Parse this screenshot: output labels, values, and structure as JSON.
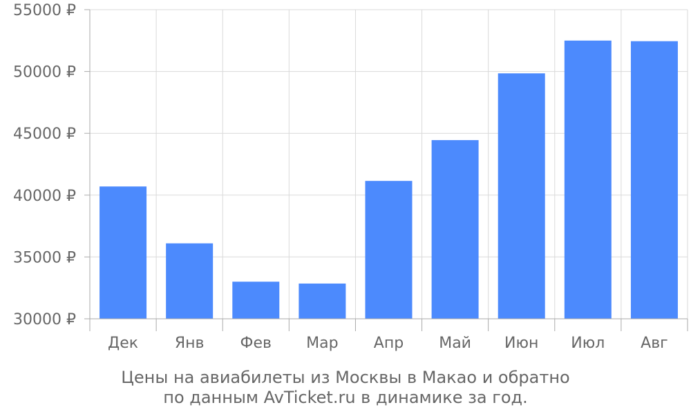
{
  "chart_data": {
    "type": "bar",
    "categories": [
      "Дек",
      "Янв",
      "Фев",
      "Мар",
      "Апр",
      "Май",
      "Июн",
      "Июл",
      "Авг"
    ],
    "values": [
      40700,
      36100,
      33000,
      32850,
      41150,
      44450,
      49850,
      52500,
      52450
    ],
    "y_ticks": [
      "30000 ₽",
      "35000 ₽",
      "40000 ₽",
      "45000 ₽",
      "50000 ₽",
      "55000 ₽"
    ],
    "ylim": [
      30000,
      55000
    ],
    "grid": true,
    "bar_color": "#4c8afd",
    "grid_color": "#d9d9d9",
    "axis_color": "#aaaaaa",
    "text_color": "#666666",
    "caption": [
      "Цены на авиабилеты из Москвы в Макао и обратно",
      "по данным AvTicket.ru в динамике за год."
    ]
  }
}
